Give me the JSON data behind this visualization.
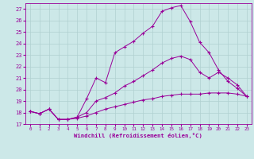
{
  "xlabel": "Windchill (Refroidissement éolien,°C)",
  "ylabel": "",
  "background_color": "#cce8e8",
  "line_color": "#990099",
  "grid_color": "#b0d0d0",
  "xlim": [
    -0.5,
    23.5
  ],
  "ylim": [
    17,
    27.5
  ],
  "yticks": [
    17,
    18,
    19,
    20,
    21,
    22,
    23,
    24,
    25,
    26,
    27
  ],
  "xticks": [
    0,
    1,
    2,
    3,
    4,
    5,
    6,
    7,
    8,
    9,
    10,
    11,
    12,
    13,
    14,
    15,
    16,
    17,
    18,
    19,
    20,
    21,
    22,
    23
  ],
  "line1_x": [
    0,
    1,
    2,
    3,
    4,
    5,
    6,
    7,
    8,
    9,
    10,
    11,
    12,
    13,
    14,
    15,
    16,
    17,
    18,
    19,
    20,
    21,
    22,
    23
  ],
  "line1_y": [
    18.1,
    17.9,
    18.3,
    17.4,
    17.4,
    17.6,
    19.2,
    21.0,
    20.6,
    23.2,
    23.7,
    24.2,
    24.9,
    25.5,
    26.8,
    27.1,
    27.3,
    25.9,
    24.1,
    23.2,
    21.7,
    20.7,
    20.1,
    19.4
  ],
  "line2_x": [
    0,
    1,
    2,
    3,
    4,
    5,
    6,
    7,
    8,
    9,
    10,
    11,
    12,
    13,
    14,
    15,
    16,
    17,
    18,
    19,
    20,
    21,
    22,
    23
  ],
  "line2_y": [
    18.1,
    17.9,
    18.3,
    17.4,
    17.4,
    17.6,
    18.0,
    19.0,
    19.3,
    19.7,
    20.3,
    20.7,
    21.2,
    21.7,
    22.3,
    22.7,
    22.9,
    22.6,
    21.5,
    21.0,
    21.5,
    21.0,
    20.4,
    19.4
  ],
  "line3_x": [
    0,
    1,
    2,
    3,
    4,
    5,
    6,
    7,
    8,
    9,
    10,
    11,
    12,
    13,
    14,
    15,
    16,
    17,
    18,
    19,
    20,
    21,
    22,
    23
  ],
  "line3_y": [
    18.1,
    17.9,
    18.3,
    17.4,
    17.4,
    17.5,
    17.7,
    18.0,
    18.3,
    18.5,
    18.7,
    18.9,
    19.1,
    19.2,
    19.4,
    19.5,
    19.6,
    19.6,
    19.6,
    19.7,
    19.7,
    19.7,
    19.6,
    19.4
  ]
}
